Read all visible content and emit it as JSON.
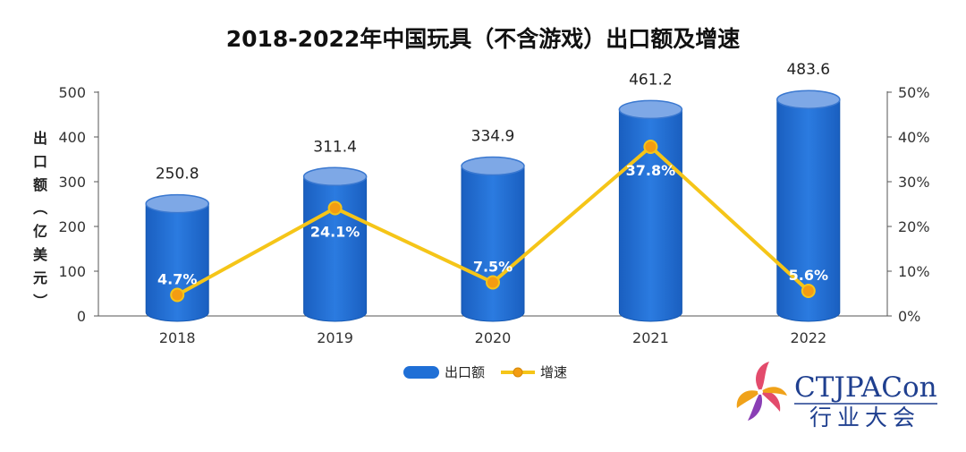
{
  "chart_data": {
    "type": "bar",
    "title": "2018-2022年中国玩具（不含游戏）出口额及增速",
    "categories": [
      "2018",
      "2019",
      "2020",
      "2021",
      "2022"
    ],
    "series": [
      {
        "name": "出口额",
        "type": "bar",
        "axis": "left",
        "values": [
          250.8,
          311.4,
          334.9,
          461.2,
          483.6
        ]
      },
      {
        "name": "增速",
        "type": "line",
        "axis": "right",
        "values": [
          4.7,
          24.1,
          7.5,
          37.8,
          5.6
        ]
      }
    ],
    "bar_labels": [
      "250.8",
      "311.4",
      "334.9",
      "461.2",
      "483.6"
    ],
    "line_labels": [
      "4.7%",
      "24.1%",
      "7.5%",
      "37.8%",
      "5.6%"
    ],
    "ylabel": "出口额（亿美元）",
    "ylim": [
      0,
      500
    ],
    "y_ticks": [
      "0",
      "100",
      "200",
      "300",
      "400",
      "500"
    ],
    "y2lim": [
      0,
      50
    ],
    "y2_ticks": [
      "0%",
      "10%",
      "20%",
      "30%",
      "40%",
      "50%"
    ],
    "legend": [
      "出口额",
      "增速"
    ],
    "legend_position": "bottom-center",
    "grid": false,
    "colors": {
      "bar": "#1f6fd6",
      "bar_top": "#7ea8e6",
      "line": "#f5c518",
      "marker": "#f39c12"
    }
  },
  "watermark": {
    "en": "CTJPACon",
    "cn": "行业大会"
  }
}
